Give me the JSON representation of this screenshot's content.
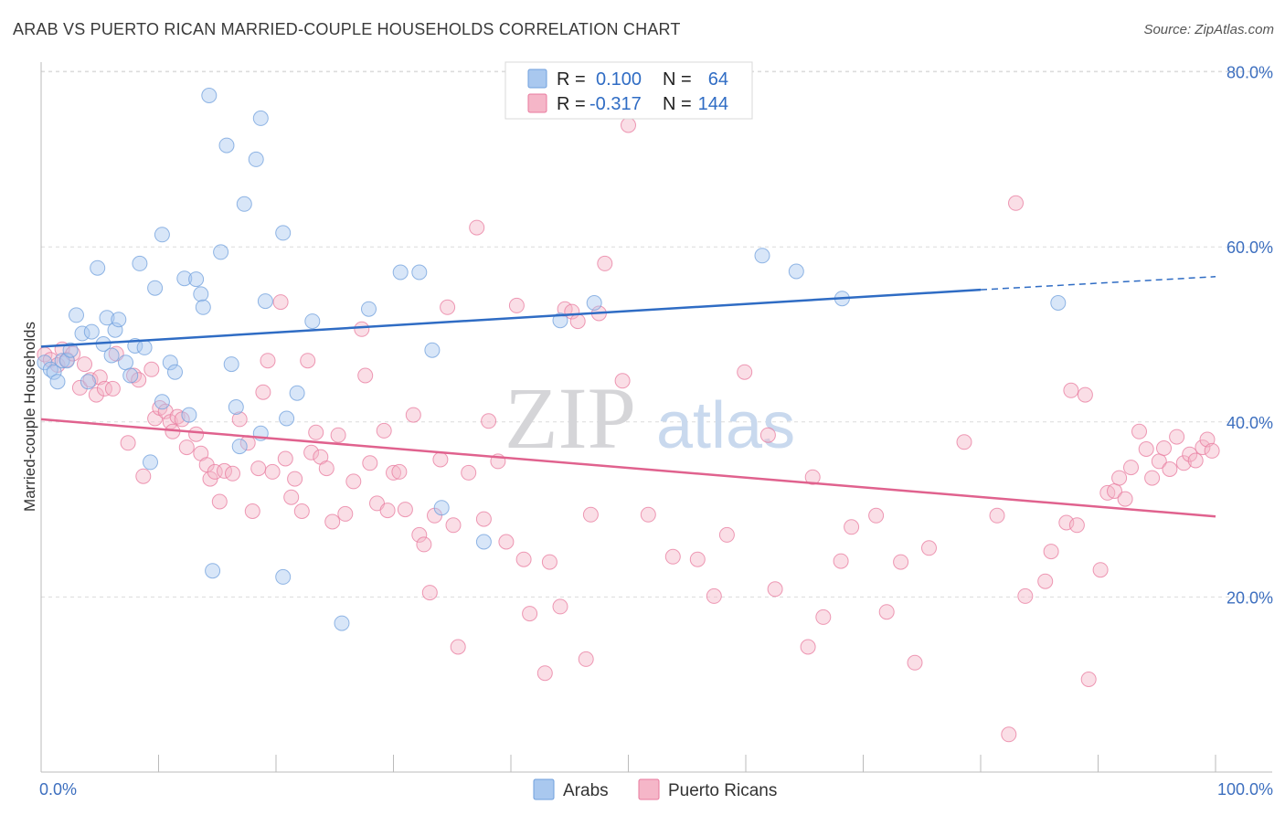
{
  "header": {
    "title": "ARAB VS PUERTO RICAN MARRIED-COUPLE HOUSEHOLDS CORRELATION CHART",
    "source": "Source: ZipAtlas.com"
  },
  "watermark": {
    "part1": "ZIP",
    "part2": "atlas"
  },
  "legend": {
    "rows": [
      {
        "r_label": "R =",
        "r_value": "0.100",
        "n_label": "N =",
        "n_value": "64",
        "color": "#a9c8ef"
      },
      {
        "r_label": "R =",
        "r_value": "-0.317",
        "n_label": "N =",
        "n_value": "144",
        "color": "#f5b6c8"
      }
    ]
  },
  "bottom_legend": [
    {
      "label": "Arabs",
      "color": "#a9c8ef"
    },
    {
      "label": "Puerto Ricans",
      "color": "#f5b6c8"
    }
  ],
  "chart_data": {
    "type": "scatter",
    "title": "ARAB VS PUERTO RICAN MARRIED-COUPLE HOUSEHOLDS CORRELATION CHART",
    "xlabel": "",
    "ylabel": "Married-couple Households",
    "xlim": [
      0,
      100
    ],
    "ylim": [
      0,
      84
    ],
    "x_tick_labels": [
      "0.0%",
      "100.0%"
    ],
    "y_ticks": [
      20,
      40,
      60,
      80
    ],
    "y_tick_labels": [
      "20.0%",
      "40.0%",
      "60.0%",
      "80.0%"
    ],
    "grid": true,
    "series": [
      {
        "name": "Arabs",
        "color": "#6f9fdc",
        "fill": "#a9c8ef",
        "trend": {
          "x": [
            0,
            80,
            100
          ],
          "y": [
            48.6,
            55.1,
            56.6
          ],
          "solid_until": 80
        },
        "points": [
          [
            0.3,
            46.8
          ],
          [
            0.8,
            46.0
          ],
          [
            1.1,
            45.7
          ],
          [
            1.4,
            44.6
          ],
          [
            1.8,
            47.0
          ],
          [
            2.2,
            47.0
          ],
          [
            2.5,
            48.2
          ],
          [
            3.0,
            52.2
          ],
          [
            3.5,
            50.1
          ],
          [
            4.0,
            44.6
          ],
          [
            4.3,
            50.3
          ],
          [
            4.8,
            57.6
          ],
          [
            5.3,
            48.9
          ],
          [
            5.6,
            51.9
          ],
          [
            6.0,
            47.6
          ],
          [
            6.3,
            50.5
          ],
          [
            6.6,
            51.7
          ],
          [
            7.2,
            46.8
          ],
          [
            7.6,
            45.3
          ],
          [
            8.0,
            48.7
          ],
          [
            8.4,
            58.1
          ],
          [
            8.8,
            48.5
          ],
          [
            9.3,
            35.4
          ],
          [
            9.7,
            55.3
          ],
          [
            10.3,
            61.4
          ],
          [
            10.3,
            42.3
          ],
          [
            11.0,
            46.8
          ],
          [
            11.4,
            45.7
          ],
          [
            12.2,
            56.4
          ],
          [
            12.6,
            40.8
          ],
          [
            13.2,
            56.3
          ],
          [
            13.6,
            54.6
          ],
          [
            13.8,
            53.1
          ],
          [
            14.3,
            77.3
          ],
          [
            14.6,
            23.0
          ],
          [
            15.3,
            59.4
          ],
          [
            15.8,
            71.6
          ],
          [
            16.2,
            46.6
          ],
          [
            16.6,
            41.7
          ],
          [
            16.9,
            37.2
          ],
          [
            17.3,
            64.9
          ],
          [
            18.3,
            70.0
          ],
          [
            18.7,
            74.7
          ],
          [
            18.7,
            38.7
          ],
          [
            19.1,
            53.8
          ],
          [
            20.6,
            61.6
          ],
          [
            20.6,
            22.3
          ],
          [
            20.9,
            40.4
          ],
          [
            21.8,
            43.3
          ],
          [
            23.1,
            51.5
          ],
          [
            25.6,
            17.0
          ],
          [
            27.9,
            52.9
          ],
          [
            30.6,
            57.1
          ],
          [
            32.2,
            57.1
          ],
          [
            33.3,
            48.2
          ],
          [
            34.1,
            30.2
          ],
          [
            37.7,
            26.3
          ],
          [
            44.2,
            51.6
          ],
          [
            46.3,
            80.0
          ],
          [
            47.1,
            53.6
          ],
          [
            61.4,
            59.0
          ],
          [
            64.3,
            57.2
          ],
          [
            68.2,
            54.1
          ],
          [
            86.6,
            53.6
          ]
        ]
      },
      {
        "name": "Puerto Ricans",
        "color": "#e8799e",
        "fill": "#f5b6c8",
        "trend": {
          "x": [
            0,
            100
          ],
          "y": [
            40.3,
            29.2
          ]
        },
        "points": [
          [
            0.3,
            47.7
          ],
          [
            0.8,
            47.1
          ],
          [
            1.4,
            46.5
          ],
          [
            1.8,
            48.3
          ],
          [
            2.2,
            47.1
          ],
          [
            2.7,
            47.8
          ],
          [
            3.3,
            43.9
          ],
          [
            3.7,
            46.6
          ],
          [
            4.2,
            44.8
          ],
          [
            4.7,
            43.1
          ],
          [
            5.0,
            45.1
          ],
          [
            5.4,
            43.8
          ],
          [
            6.1,
            43.8
          ],
          [
            6.4,
            47.8
          ],
          [
            7.4,
            37.6
          ],
          [
            7.9,
            45.3
          ],
          [
            8.3,
            44.8
          ],
          [
            8.7,
            33.8
          ],
          [
            9.4,
            46.0
          ],
          [
            9.7,
            40.4
          ],
          [
            10.1,
            41.6
          ],
          [
            10.6,
            41.2
          ],
          [
            11.0,
            40.0
          ],
          [
            11.2,
            38.9
          ],
          [
            11.6,
            40.6
          ],
          [
            12.0,
            40.3
          ],
          [
            12.4,
            37.1
          ],
          [
            13.2,
            38.6
          ],
          [
            13.6,
            36.4
          ],
          [
            14.1,
            35.1
          ],
          [
            14.4,
            33.5
          ],
          [
            14.8,
            34.3
          ],
          [
            15.2,
            30.9
          ],
          [
            15.6,
            34.4
          ],
          [
            16.3,
            34.1
          ],
          [
            16.9,
            40.3
          ],
          [
            17.6,
            37.6
          ],
          [
            18.0,
            29.8
          ],
          [
            18.5,
            34.7
          ],
          [
            18.9,
            43.4
          ],
          [
            19.3,
            47.0
          ],
          [
            19.7,
            34.3
          ],
          [
            20.4,
            53.7
          ],
          [
            20.8,
            35.8
          ],
          [
            21.3,
            31.4
          ],
          [
            21.6,
            33.5
          ],
          [
            22.2,
            29.8
          ],
          [
            22.7,
            47.0
          ],
          [
            23.0,
            36.5
          ],
          [
            23.4,
            38.8
          ],
          [
            23.8,
            36.0
          ],
          [
            24.3,
            34.7
          ],
          [
            24.8,
            28.6
          ],
          [
            25.3,
            38.5
          ],
          [
            25.9,
            29.5
          ],
          [
            26.6,
            33.2
          ],
          [
            27.3,
            50.6
          ],
          [
            27.6,
            45.3
          ],
          [
            28.0,
            35.3
          ],
          [
            28.6,
            30.7
          ],
          [
            29.2,
            39.0
          ],
          [
            29.5,
            29.9
          ],
          [
            30.0,
            34.2
          ],
          [
            30.5,
            34.3
          ],
          [
            31.0,
            30.0
          ],
          [
            31.7,
            40.8
          ],
          [
            32.2,
            27.1
          ],
          [
            32.6,
            26.0
          ],
          [
            33.1,
            20.5
          ],
          [
            33.5,
            29.3
          ],
          [
            34.0,
            35.7
          ],
          [
            34.6,
            53.1
          ],
          [
            35.1,
            28.2
          ],
          [
            35.5,
            14.3
          ],
          [
            36.4,
            34.2
          ],
          [
            37.1,
            62.2
          ],
          [
            37.7,
            28.9
          ],
          [
            38.1,
            40.1
          ],
          [
            38.9,
            35.5
          ],
          [
            39.6,
            26.3
          ],
          [
            40.5,
            53.3
          ],
          [
            41.1,
            24.3
          ],
          [
            41.6,
            18.1
          ],
          [
            42.9,
            11.3
          ],
          [
            43.3,
            24.0
          ],
          [
            44.2,
            18.9
          ],
          [
            44.6,
            52.9
          ],
          [
            45.2,
            52.6
          ],
          [
            45.7,
            51.5
          ],
          [
            46.4,
            12.9
          ],
          [
            46.8,
            29.4
          ],
          [
            47.5,
            52.4
          ],
          [
            48.0,
            58.1
          ],
          [
            49.5,
            44.7
          ],
          [
            50.0,
            73.9
          ],
          [
            51.7,
            29.4
          ],
          [
            53.8,
            24.6
          ],
          [
            55.9,
            24.3
          ],
          [
            57.3,
            20.1
          ],
          [
            58.4,
            27.1
          ],
          [
            59.9,
            45.7
          ],
          [
            61.9,
            38.5
          ],
          [
            62.5,
            20.9
          ],
          [
            65.3,
            14.3
          ],
          [
            65.7,
            33.7
          ],
          [
            66.6,
            17.7
          ],
          [
            68.1,
            24.1
          ],
          [
            69.0,
            28.0
          ],
          [
            71.1,
            29.3
          ],
          [
            72.0,
            18.3
          ],
          [
            73.2,
            24.0
          ],
          [
            74.4,
            12.5
          ],
          [
            75.6,
            25.6
          ],
          [
            78.6,
            37.7
          ],
          [
            81.4,
            29.3
          ],
          [
            82.4,
            4.3
          ],
          [
            83.0,
            65.0
          ],
          [
            83.8,
            20.1
          ],
          [
            85.5,
            21.8
          ],
          [
            86.0,
            25.2
          ],
          [
            87.3,
            28.5
          ],
          [
            87.7,
            43.6
          ],
          [
            88.2,
            28.2
          ],
          [
            88.9,
            43.1
          ],
          [
            89.2,
            10.6
          ],
          [
            90.2,
            23.1
          ],
          [
            90.8,
            31.9
          ],
          [
            91.4,
            32.1
          ],
          [
            91.8,
            33.6
          ],
          [
            92.3,
            31.2
          ],
          [
            92.8,
            34.8
          ],
          [
            93.5,
            38.9
          ],
          [
            94.1,
            36.9
          ],
          [
            94.6,
            33.6
          ],
          [
            95.2,
            35.5
          ],
          [
            95.6,
            37.0
          ],
          [
            96.1,
            34.6
          ],
          [
            96.7,
            38.3
          ],
          [
            97.3,
            35.3
          ],
          [
            97.8,
            36.3
          ],
          [
            98.3,
            35.6
          ],
          [
            98.9,
            37.1
          ],
          [
            99.3,
            38.0
          ],
          [
            99.7,
            36.7
          ]
        ]
      }
    ]
  }
}
